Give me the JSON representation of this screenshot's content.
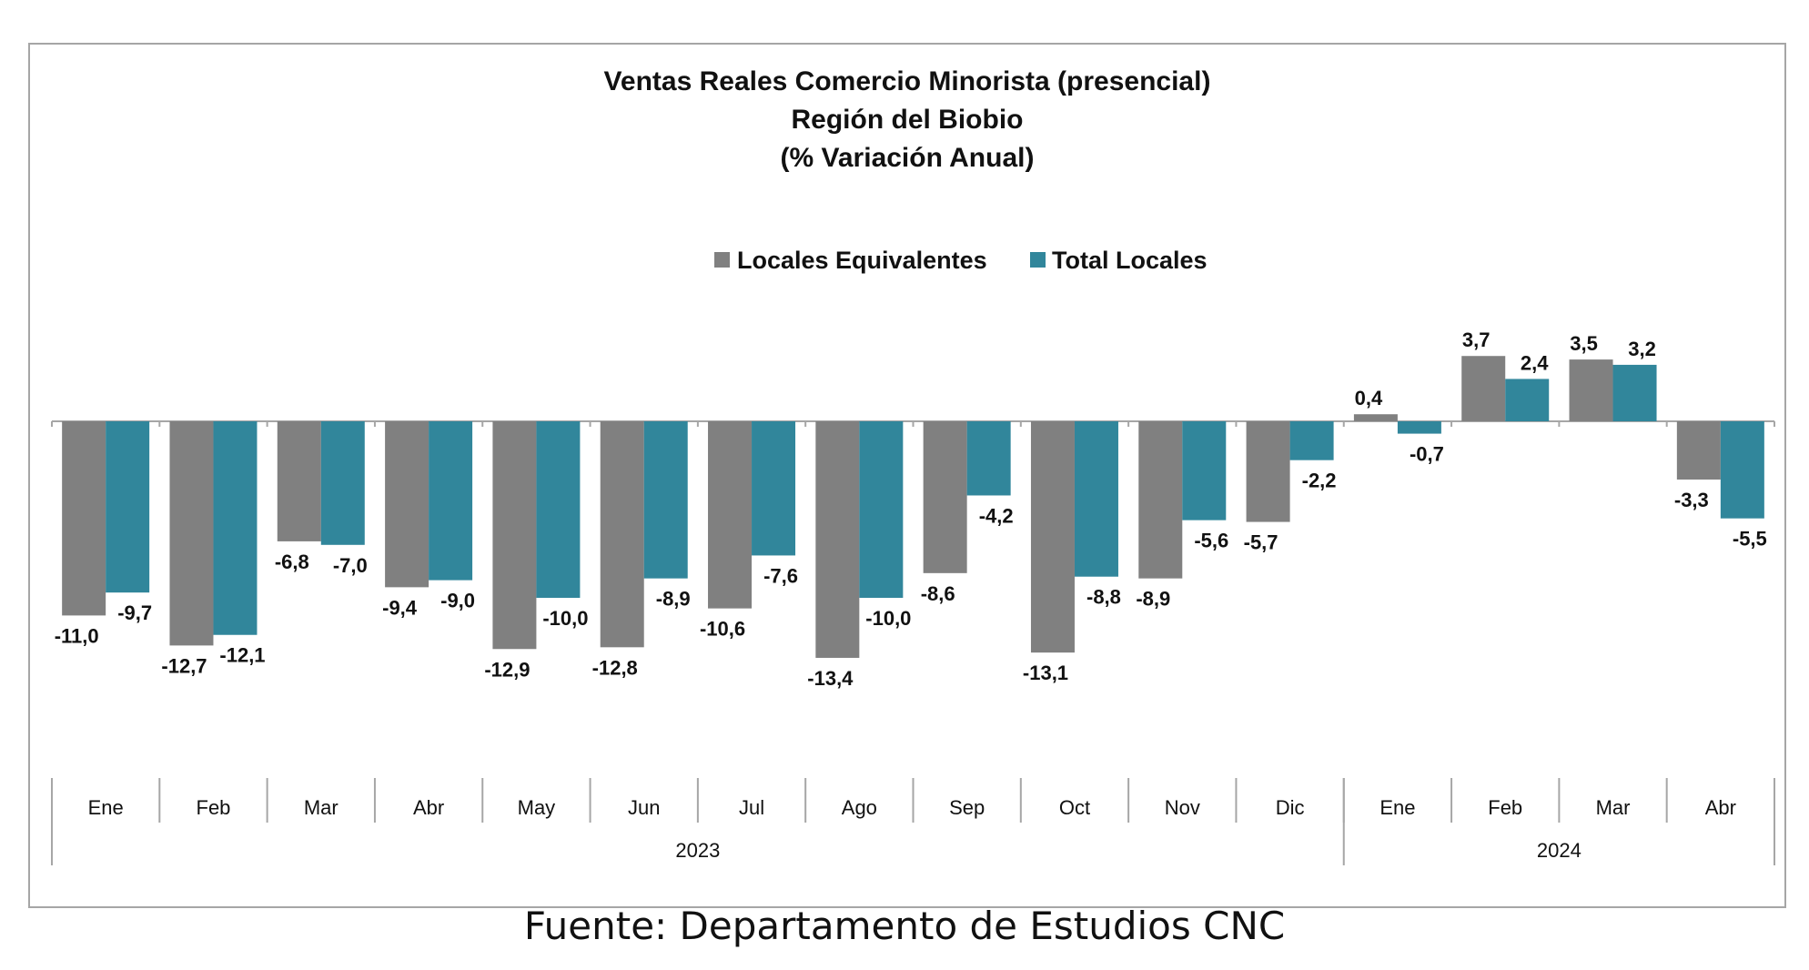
{
  "chart_data": {
    "type": "bar",
    "title": [
      "Ventas Reales Comercio Minorista (presencial)",
      "Región del Biobio",
      "(% Variación Anual)"
    ],
    "xlabel": "",
    "ylabel": "",
    "ylim": [
      -16,
      5
    ],
    "grid": false,
    "legend_position": "top-center",
    "categories": [
      "Ene",
      "Feb",
      "Mar",
      "Abr",
      "May",
      "Jun",
      "Jul",
      "Ago",
      "Sep",
      "Oct",
      "Nov",
      "Dic",
      "Ene",
      "Feb",
      "Mar",
      "Abr"
    ],
    "year_groups": [
      {
        "label": "2023",
        "count": 12
      },
      {
        "label": "2024",
        "count": 4
      }
    ],
    "series": [
      {
        "name": "Locales Equivalentes",
        "color": "#808080",
        "values": [
          -11.0,
          -12.7,
          -6.8,
          -9.4,
          -12.9,
          -12.8,
          -10.6,
          -13.4,
          -8.6,
          -13.1,
          -8.9,
          -5.7,
          0.4,
          3.7,
          3.5,
          -3.3
        ],
        "labels": [
          "-11,0",
          "-12,7",
          "-6,8",
          "-9,4",
          "-12,9",
          "-12,8",
          "-10,6",
          "-13,4",
          "-8,6",
          "-13,1",
          "-8,9",
          "-5,7",
          "0,4",
          "3,7",
          "3,5",
          "-3,3"
        ]
      },
      {
        "name": "Total Locales",
        "color": "#31869B",
        "values": [
          -9.7,
          -12.1,
          -7.0,
          -9.0,
          -10.0,
          -8.9,
          -7.6,
          -10.0,
          -4.2,
          -8.8,
          -5.6,
          -2.2,
          -0.7,
          2.4,
          3.2,
          -5.5
        ],
        "labels": [
          "-9,7",
          "-12,1",
          "-7,0",
          "-9,0",
          "-10,0",
          "-8,9",
          "-7,6",
          "-10,0",
          "-4,2",
          "-8,8",
          "-5,6",
          "-2,2",
          "-0,7",
          "2,4",
          "3,2",
          "-5,5"
        ]
      }
    ]
  },
  "source_note": "Fuente: Departamento de Estudios CNC"
}
